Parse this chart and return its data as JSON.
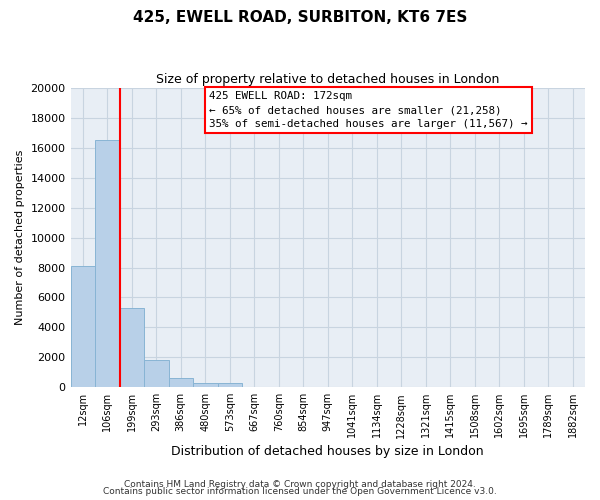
{
  "title": "425, EWELL ROAD, SURBITON, KT6 7ES",
  "subtitle": "Size of property relative to detached houses in London",
  "xlabel": "Distribution of detached houses by size in London",
  "ylabel": "Number of detached properties",
  "bar_labels": [
    "12sqm",
    "106sqm",
    "199sqm",
    "293sqm",
    "386sqm",
    "480sqm",
    "573sqm",
    "667sqm",
    "760sqm",
    "854sqm",
    "947sqm",
    "1041sqm",
    "1134sqm",
    "1228sqm",
    "1321sqm",
    "1415sqm",
    "1508sqm",
    "1602sqm",
    "1695sqm",
    "1789sqm",
    "1882sqm"
  ],
  "bar_values": [
    8100,
    16500,
    5300,
    1800,
    600,
    300,
    250,
    0,
    0,
    0,
    0,
    0,
    0,
    0,
    0,
    0,
    0,
    0,
    0,
    0,
    0
  ],
  "bar_color": "#b8d0e8",
  "bar_edgecolor": "#88b4d4",
  "vline_color": "red",
  "vline_pos": 1.5,
  "ylim": [
    0,
    20000
  ],
  "yticks": [
    0,
    2000,
    4000,
    6000,
    8000,
    10000,
    12000,
    14000,
    16000,
    18000,
    20000
  ],
  "annotation_title": "425 EWELL ROAD: 172sqm",
  "annotation_line1": "← 65% of detached houses are smaller (21,258)",
  "annotation_line2": "35% of semi-detached houses are larger (11,567) →",
  "annotation_box_color": "#ffffff",
  "annotation_box_edgecolor": "red",
  "footer1": "Contains HM Land Registry data © Crown copyright and database right 2024.",
  "footer2": "Contains public sector information licensed under the Open Government Licence v3.0.",
  "plot_bg_color": "#e8eef5",
  "grid_color": "#c8d4e0"
}
